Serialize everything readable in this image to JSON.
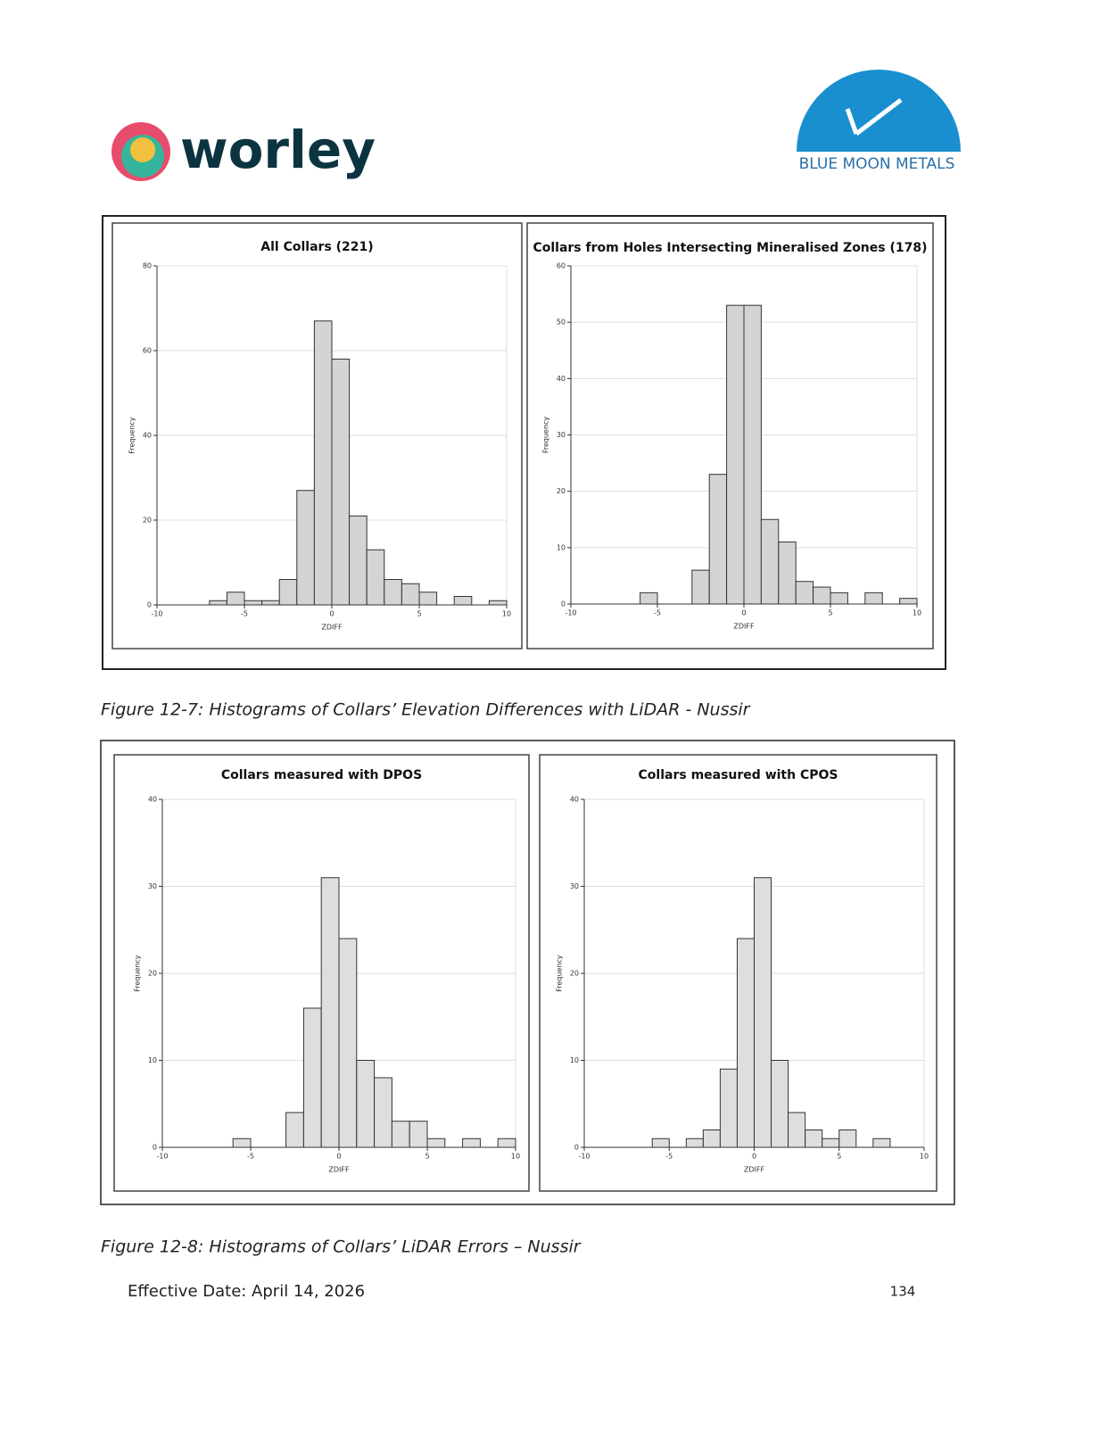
{
  "header": {
    "logo_left": "worley",
    "logo_right": "BLUE MOON METALS"
  },
  "chart_data": [
    {
      "type": "histogram",
      "title": "All Collars (221)",
      "x_label": "ZDIFF",
      "y_label": "Frequency",
      "color": "#d4d4d4",
      "bins": [
        -10,
        -9,
        -8,
        -7,
        -6,
        -5,
        -4,
        -3,
        -2,
        -1,
        0,
        1,
        2,
        3,
        4,
        5,
        6,
        7,
        8,
        9,
        10
      ],
      "values": [
        0,
        0,
        0,
        1,
        3,
        1,
        1,
        6,
        27,
        67,
        58,
        21,
        13,
        6,
        5,
        3,
        0,
        2,
        0,
        1
      ],
      "xlim": [
        -10,
        10
      ],
      "xticks": [
        -10,
        -5,
        0,
        5,
        10
      ],
      "ylim": [
        0,
        80
      ],
      "yticks": [
        0,
        20,
        40,
        60,
        80
      ],
      "grid": true
    },
    {
      "type": "histogram",
      "title": "Collars from Holes Intersecting Mineralised Zones (178)",
      "x_label": "ZDIFF",
      "y_label": "Frequency",
      "color": "#d4d4d4",
      "bins": [
        -10,
        -9,
        -8,
        -7,
        -6,
        -5,
        -4,
        -3,
        -2,
        -1,
        0,
        1,
        2,
        3,
        4,
        5,
        6,
        7,
        8,
        9,
        10
      ],
      "values": [
        0,
        0,
        0,
        0,
        2,
        0,
        0,
        6,
        23,
        53,
        53,
        15,
        11,
        4,
        3,
        2,
        0,
        2,
        0,
        1
      ],
      "xlim": [
        -10,
        10
      ],
      "xticks": [
        -10,
        -5,
        0,
        5,
        10
      ],
      "ylim": [
        0,
        60
      ],
      "yticks": [
        0,
        10,
        20,
        30,
        40,
        50,
        60
      ],
      "grid": true
    },
    {
      "type": "histogram",
      "title": "Collars measured with DPOS",
      "x_label": "ZDIFF",
      "y_label": "Frequency",
      "color": "#dedede",
      "bins": [
        -10,
        -9,
        -8,
        -7,
        -6,
        -5,
        -4,
        -3,
        -2,
        -1,
        0,
        1,
        2,
        3,
        4,
        5,
        6,
        7,
        8,
        9,
        10
      ],
      "values": [
        0,
        0,
        0,
        0,
        1,
        0,
        0,
        4,
        16,
        31,
        24,
        10,
        8,
        3,
        3,
        1,
        0,
        1,
        0,
        1
      ],
      "xlim": [
        -10,
        10
      ],
      "xticks": [
        -10,
        -5,
        0,
        5,
        10
      ],
      "ylim": [
        0,
        40
      ],
      "yticks": [
        0,
        10,
        20,
        30,
        40
      ],
      "grid": true
    },
    {
      "type": "histogram",
      "title": "Collars measured with CPOS",
      "x_label": "ZDIFF",
      "y_label": "Frequency",
      "color": "#dedede",
      "bins": [
        -10,
        -9,
        -8,
        -7,
        -6,
        -5,
        -4,
        -3,
        -2,
        -1,
        0,
        1,
        2,
        3,
        4,
        5,
        6,
        7,
        8,
        9,
        10
      ],
      "values": [
        0,
        0,
        0,
        0,
        1,
        0,
        1,
        2,
        9,
        24,
        31,
        10,
        4,
        2,
        1,
        2,
        0,
        1,
        0,
        0
      ],
      "xlim": [
        -10,
        10
      ],
      "xticks": [
        -10,
        -5,
        0,
        5,
        10
      ],
      "ylim": [
        0,
        40
      ],
      "yticks": [
        0,
        10,
        20,
        30,
        40
      ],
      "grid": true
    }
  ],
  "captions": [
    "Figure 12-7: Histograms of Collars’ Elevation Differences with LiDAR - Nussir",
    "Figure 12-8: Histograms of Collars’ LiDAR Errors – Nussir"
  ],
  "footer": {
    "effective_date": "Effective Date: April 14, 2026",
    "page_number": "134"
  }
}
